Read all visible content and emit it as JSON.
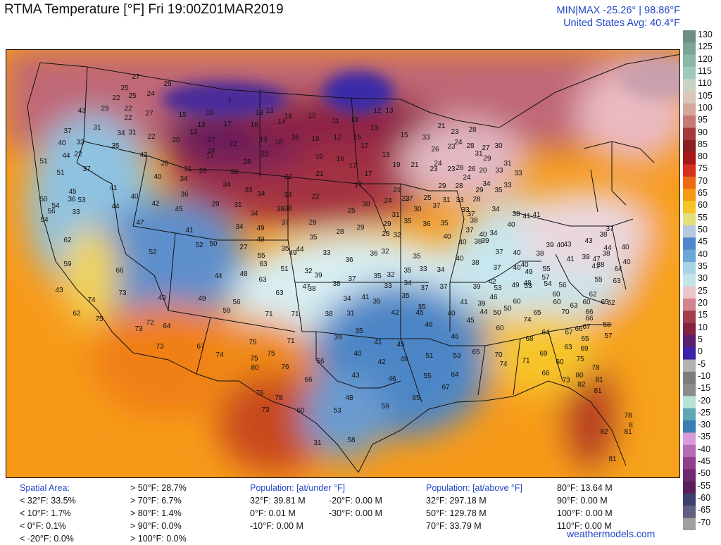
{
  "title": "RTMA Temperature [°F]  Fri 19:00Z01MAR2019",
  "minmax_line": "MIN|MAX -25.26°  |  98.86°F",
  "avg_line": "United States Avg: 40.4°F",
  "credit": "weathermodels.com",
  "legend": {
    "ticks": [
      "130",
      "125",
      "120",
      "115",
      "110",
      "105",
      "100",
      "95",
      "90",
      "85",
      "80",
      "75",
      "70",
      "65",
      "60",
      "55",
      "50",
      "45",
      "40",
      "35",
      "30",
      "25",
      "20",
      "15",
      "10",
      "5",
      "0",
      "-5",
      "-10",
      "-15",
      "-20",
      "-25",
      "-30",
      "-35",
      "-40",
      "-45",
      "-50",
      "-55",
      "-60",
      "-65",
      "-70"
    ],
    "colors": [
      "#6f8f85",
      "#7aa495",
      "#8ab9a8",
      "#9ecbb9",
      "#c9d2c5",
      "#d9c7b7",
      "#d6a59c",
      "#c57a73",
      "#a63a3a",
      "#8c1f1f",
      "#a81818",
      "#d6301f",
      "#ee6a12",
      "#f69a12",
      "#f7c426",
      "#e3e07a",
      "#b7c9de",
      "#4f88c9",
      "#6aa8d8",
      "#a9d3e6",
      "#c2e5ec",
      "#eac5cc",
      "#d2848e",
      "#a43c4e",
      "#822241",
      "#5a1f6d",
      "#3b22a8",
      "#b2b2b2",
      "#7d7d7d",
      "#8c8c8c",
      "#b7e2d8",
      "#5ea7b3",
      "#3c7db3",
      "#d99cd9",
      "#b46ab4",
      "#8e3f8e",
      "#6f2a6f",
      "#5a1f5a",
      "#3f3f70",
      "#606080",
      "#a0a0a0"
    ]
  },
  "stats": {
    "spatial": {
      "header": "Spatial Area:",
      "rows": [
        "< 32°F: 33.5%",
        "< 10°F: 1.7%",
        "< 0°F: 0.1%",
        "< -20°F: 0.0%"
      ]
    },
    "spatial_above": [
      "> 50°F: 28.7%",
      "> 70°F: 6.7%",
      "> 80°F: 1.4%",
      "> 90°F: 0.0%",
      "> 100°F: 0.0%"
    ],
    "pop_under": {
      "header": "Population: [at/under °F]",
      "col1": [
        "32°F: 39.81 M",
        "0°F: 0.01 M",
        "-10°F: 0.00 M"
      ],
      "col2": [
        "-20°F: 0.00 M",
        "-30°F: 0.00 M"
      ]
    },
    "pop_above": {
      "header": "Population: [at/above °F]",
      "col1": [
        "32°F: 297.18 M",
        "50°F: 129.78 M",
        "70°F: 33.79 M"
      ],
      "col2": [
        "80°F: 13.64 M",
        "90°F: 0.00 M",
        "100°F: 0.00 M",
        "110°F: 0.00 M"
      ]
    }
  },
  "map_labels": [
    [
      "27",
      192,
      107
    ],
    [
      "29",
      237,
      117
    ],
    [
      "25",
      176,
      123
    ],
    [
      "24",
      213,
      131
    ],
    [
      "22",
      164,
      137
    ],
    [
      "25",
      187,
      134
    ],
    [
      "29",
      148,
      152
    ],
    [
      "22",
      181,
      152
    ],
    [
      "22",
      181,
      165
    ],
    [
      "27",
      211,
      159
    ],
    [
      "15",
      258,
      161
    ],
    [
      "10",
      297,
      158
    ],
    [
      "7",
      325,
      142
    ],
    [
      "13",
      367,
      158
    ],
    [
      "13",
      382,
      155
    ],
    [
      "14",
      408,
      163
    ],
    [
      "12",
      442,
      162
    ],
    [
      "11",
      476,
      170
    ],
    [
      "13",
      502,
      168
    ],
    [
      "12",
      535,
      155
    ],
    [
      "13",
      552,
      155
    ],
    [
      "43",
      115,
      155
    ],
    [
      "31",
      137,
      179
    ],
    [
      "37",
      95,
      184
    ],
    [
      "40",
      87,
      201
    ],
    [
      "32",
      113,
      200
    ],
    [
      "44",
      93,
      219
    ],
    [
      "22",
      110,
      217
    ],
    [
      "34",
      171,
      187
    ],
    [
      "31",
      187,
      186
    ],
    [
      "35",
      163,
      205
    ],
    [
      "22",
      214,
      192
    ],
    [
      "12",
      274,
      185
    ],
    [
      "13",
      285,
      175
    ],
    [
      "17",
      322,
      174
    ],
    [
      "18",
      360,
      175
    ],
    [
      "14",
      399,
      171
    ],
    [
      "16",
      418,
      193
    ],
    [
      "16",
      447,
      195
    ],
    [
      "12",
      478,
      193
    ],
    [
      "15",
      507,
      193
    ],
    [
      "13",
      531,
      180
    ],
    [
      "15",
      573,
      190
    ],
    [
      "33",
      604,
      193
    ],
    [
      "21",
      626,
      177
    ],
    [
      "23",
      645,
      185
    ],
    [
      "28",
      670,
      182
    ],
    [
      "19",
      373,
      196
    ],
    [
      "18",
      395,
      200
    ],
    [
      "22",
      330,
      202
    ],
    [
      "20",
      249,
      197
    ],
    [
      "42",
      203,
      218
    ],
    [
      "26",
      233,
      230
    ],
    [
      "27",
      299,
      197
    ],
    [
      "17",
      297,
      220
    ],
    [
      "24",
      299,
      212
    ],
    [
      "28",
      350,
      228
    ],
    [
      "23",
      375,
      217
    ],
    [
      "19",
      452,
      221
    ],
    [
      "16",
      482,
      224
    ],
    [
      "17",
      517,
      205
    ],
    [
      "13",
      547,
      218
    ],
    [
      "19",
      562,
      232
    ],
    [
      "26",
      617,
      210
    ],
    [
      "23",
      640,
      206
    ],
    [
      "24",
      650,
      200
    ],
    [
      "28",
      667,
      205
    ],
    [
      "27",
      689,
      208
    ],
    [
      "30",
      707,
      205
    ],
    [
      "31",
      679,
      216
    ],
    [
      "29",
      691,
      223
    ],
    [
      "31",
      720,
      230
    ],
    [
      "33",
      708,
      240
    ],
    [
      "51",
      61,
      227
    ],
    [
      "37",
      122,
      238
    ],
    [
      "40",
      223,
      249
    ],
    [
      "31",
      266,
      238
    ],
    [
      "34",
      260,
      252
    ],
    [
      "26",
      287,
      241
    ],
    [
      "33",
      332,
      242
    ],
    [
      "22",
      408,
      249
    ],
    [
      "21",
      453,
      245
    ],
    [
      "17",
      500,
      234
    ],
    [
      "17",
      522,
      245
    ],
    [
      "21",
      588,
      232
    ],
    [
      "23",
      615,
      238
    ],
    [
      "24",
      621,
      230
    ],
    [
      "23",
      640,
      238
    ],
    [
      "26",
      652,
      236
    ],
    [
      "26",
      669,
      238
    ],
    [
      "20",
      685,
      240
    ],
    [
      "24",
      662,
      250
    ],
    [
      "33",
      735,
      244
    ],
    [
      "51",
      85,
      243
    ],
    [
      "41",
      160,
      265
    ],
    [
      "45",
      102,
      270
    ],
    [
      "40",
      190,
      277
    ],
    [
      "42",
      220,
      287
    ],
    [
      "36",
      261,
      274
    ],
    [
      "34",
      321,
      260
    ],
    [
      "33",
      352,
      268
    ],
    [
      "34",
      370,
      273
    ],
    [
      "24",
      408,
      275
    ],
    [
      "22",
      447,
      277
    ],
    [
      "17",
      508,
      261
    ],
    [
      "21",
      563,
      268
    ],
    [
      "23",
      575,
      280
    ],
    [
      "24",
      550,
      283
    ],
    [
      "27",
      580,
      280
    ],
    [
      "25",
      606,
      279
    ],
    [
      "31",
      633,
      282
    ],
    [
      "33",
      652,
      282
    ],
    [
      "29",
      627,
      262
    ],
    [
      "28",
      651,
      262
    ],
    [
      "29",
      680,
      268
    ],
    [
      "28",
      676,
      281
    ],
    [
      "35",
      707,
      268
    ],
    [
      "33",
      720,
      261
    ],
    [
      "34",
      690,
      259
    ],
    [
      "50",
      61,
      281
    ],
    [
      "36",
      101,
      281
    ],
    [
      "53",
      115,
      282
    ],
    [
      "44",
      163,
      291
    ],
    [
      "54",
      78,
      290
    ],
    [
      "56",
      72,
      298
    ],
    [
      "54",
      62,
      310
    ],
    [
      "33",
      107,
      299
    ],
    [
      "45",
      253,
      295
    ],
    [
      "29",
      305,
      288
    ],
    [
      "31",
      337,
      289
    ],
    [
      "34",
      360,
      301
    ],
    [
      "39",
      397,
      295
    ],
    [
      "38",
      408,
      294
    ],
    [
      "29",
      443,
      314
    ],
    [
      "25",
      498,
      297
    ],
    [
      "30",
      519,
      288
    ],
    [
      "31",
      561,
      303
    ],
    [
      "30",
      592,
      295
    ],
    [
      "37",
      619,
      290
    ],
    [
      "33",
      660,
      296
    ],
    [
      "34",
      703,
      295
    ],
    [
      "38",
      732,
      302
    ],
    [
      "41",
      747,
      305
    ],
    [
      "41",
      761,
      303
    ],
    [
      "47",
      198,
      314
    ],
    [
      "37",
      404,
      314
    ],
    [
      "28",
      482,
      327
    ],
    [
      "29",
      511,
      321
    ],
    [
      "29",
      549,
      316
    ],
    [
      "35",
      578,
      312
    ],
    [
      "36",
      605,
      316
    ],
    [
      "35",
      630,
      315
    ],
    [
      "37",
      668,
      302
    ],
    [
      "38",
      672,
      311
    ],
    [
      "40",
      725,
      317
    ],
    [
      "37",
      666,
      325
    ],
    [
      "34",
      700,
      329
    ],
    [
      "40",
      685,
      331
    ],
    [
      "41",
      268,
      325
    ],
    [
      "52",
      282,
      346
    ],
    [
      "50",
      302,
      344
    ],
    [
      "34",
      339,
      320
    ],
    [
      "49",
      369,
      322
    ],
    [
      "35",
      444,
      335
    ],
    [
      "28",
      547,
      330
    ],
    [
      "32",
      563,
      332
    ],
    [
      "40",
      634,
      334
    ],
    [
      "38",
      678,
      341
    ],
    [
      "40",
      656,
      342
    ],
    [
      "39",
      688,
      340
    ],
    [
      "62",
      95,
      339
    ],
    [
      "35",
      404,
      351
    ],
    [
      "44",
      425,
      352
    ],
    [
      "49",
      415,
      357
    ],
    [
      "33",
      463,
      357
    ],
    [
      "27",
      345,
      349
    ],
    [
      "55",
      370,
      361
    ],
    [
      "49",
      369,
      338
    ],
    [
      "36",
      530,
      358
    ],
    [
      "32",
      546,
      355
    ],
    [
      "35",
      591,
      362
    ],
    [
      "40",
      652,
      365
    ],
    [
      "37",
      708,
      356
    ],
    [
      "40",
      733,
      357
    ],
    [
      "38",
      766,
      358
    ],
    [
      "39",
      780,
      346
    ],
    [
      "40",
      795,
      346
    ],
    [
      "43",
      835,
      340
    ],
    [
      "37",
      865,
      323
    ],
    [
      "38",
      856,
      331
    ],
    [
      "59",
      95,
      373
    ],
    [
      "52",
      216,
      356
    ],
    [
      "66",
      169,
      382
    ],
    [
      "48",
      345,
      387
    ],
    [
      "44",
      309,
      390
    ],
    [
      "63",
      373,
      373
    ],
    [
      "51",
      403,
      380
    ],
    [
      "32",
      437,
      383
    ],
    [
      "39",
      451,
      389
    ],
    [
      "36",
      495,
      367
    ],
    [
      "35",
      535,
      390
    ],
    [
      "37",
      499,
      394
    ],
    [
      "32",
      554,
      388
    ],
    [
      "35",
      578,
      382
    ],
    [
      "33",
      600,
      380
    ],
    [
      "34",
      625,
      381
    ],
    [
      "38",
      674,
      371
    ],
    [
      "37",
      705,
      378
    ],
    [
      "40",
      733,
      378
    ],
    [
      "40",
      744,
      374
    ],
    [
      "49",
      750,
      384
    ],
    [
      "55",
      775,
      380
    ],
    [
      "48",
      748,
      400
    ],
    [
      "41",
      809,
      366
    ],
    [
      "47",
      846,
      366
    ],
    [
      "38",
      860,
      358
    ],
    [
      "44",
      862,
      350
    ],
    [
      "40",
      887,
      349
    ],
    [
      "40",
      889,
      370
    ],
    [
      "38",
      852,
      374
    ],
    [
      "39",
      831,
      363
    ],
    [
      "43",
      805,
      345
    ],
    [
      "63",
      372,
      395
    ],
    [
      "47",
      434,
      405
    ],
    [
      "38",
      477,
      401
    ],
    [
      "33",
      550,
      404
    ],
    [
      "34",
      578,
      400
    ],
    [
      "37",
      602,
      407
    ],
    [
      "37",
      629,
      405
    ],
    [
      "39",
      676,
      405
    ],
    [
      "42",
      698,
      398
    ],
    [
      "49",
      731,
      403
    ],
    [
      "53",
      749,
      404
    ],
    [
      "54",
      777,
      401
    ],
    [
      "57",
      774,
      392
    ],
    [
      "56",
      798,
      403
    ],
    [
      "55",
      849,
      395
    ],
    [
      "63",
      875,
      397
    ],
    [
      "64",
      877,
      380
    ],
    [
      "41",
      845,
      376
    ],
    [
      "43",
      83,
      410
    ],
    [
      "74",
      129,
      424
    ],
    [
      "73",
      173,
      414
    ],
    [
      "63",
      396,
      414
    ],
    [
      "38",
      442,
      408
    ],
    [
      "41",
      518,
      420
    ],
    [
      "35",
      575,
      418
    ],
    [
      "35",
      598,
      434
    ],
    [
      "42",
      560,
      442
    ],
    [
      "45",
      595,
      442
    ],
    [
      "40",
      640,
      443
    ],
    [
      "39",
      683,
      429
    ],
    [
      "41",
      658,
      427
    ],
    [
      "46",
      700,
      420
    ],
    [
      "50",
      705,
      442
    ],
    [
      "53",
      706,
      407
    ],
    [
      "60",
      733,
      426
    ],
    [
      "60",
      789,
      416
    ],
    [
      "62",
      841,
      416
    ],
    [
      "63",
      814,
      432
    ],
    [
      "62",
      867,
      428
    ],
    [
      "65",
      858,
      427
    ],
    [
      "62",
      108,
      443
    ],
    [
      "75",
      140,
      451
    ],
    [
      "73",
      196,
      465
    ],
    [
      "72",
      212,
      456
    ],
    [
      "64",
      236,
      461
    ],
    [
      "49",
      229,
      421
    ],
    [
      "49",
      286,
      422
    ],
    [
      "59",
      321,
      439
    ],
    [
      "56",
      335,
      427
    ],
    [
      "71",
      381,
      444
    ],
    [
      "71",
      418,
      444
    ],
    [
      "38",
      466,
      444
    ],
    [
      "31",
      497,
      443
    ],
    [
      "34",
      492,
      422
    ],
    [
      "35",
      534,
      426
    ],
    [
      "46",
      608,
      459
    ],
    [
      "45",
      667,
      453
    ],
    [
      "44",
      686,
      441
    ],
    [
      "50",
      720,
      436
    ],
    [
      "65",
      762,
      442
    ],
    [
      "74",
      748,
      452
    ],
    [
      "70",
      802,
      441
    ],
    [
      "60",
      790,
      427
    ],
    [
      "60",
      832,
      427
    ],
    [
      "66",
      836,
      441
    ],
    [
      "66",
      836,
      450
    ],
    [
      "58",
      861,
      459
    ],
    [
      "73",
      226,
      490
    ],
    [
      "67",
      284,
      490
    ],
    [
      "75",
      358,
      484
    ],
    [
      "71",
      412,
      482
    ],
    [
      "39",
      479,
      477
    ],
    [
      "35",
      509,
      468
    ],
    [
      "41",
      536,
      484
    ],
    [
      "45",
      568,
      487
    ],
    [
      "46",
      645,
      476
    ],
    [
      "60",
      709,
      464
    ],
    [
      "68",
      751,
      479
    ],
    [
      "64",
      774,
      470
    ],
    [
      "67",
      807,
      470
    ],
    [
      "66",
      821,
      465
    ],
    [
      "65",
      830,
      479
    ],
    [
      "67",
      832,
      462
    ],
    [
      "69",
      829,
      493
    ],
    [
      "57",
      863,
      475
    ],
    [
      "74",
      311,
      502
    ],
    [
      "75",
      384,
      500
    ],
    [
      "75",
      360,
      507
    ],
    [
      "80",
      361,
      520
    ],
    [
      "76",
      404,
      519
    ],
    [
      "56",
      454,
      511
    ],
    [
      "40",
      507,
      500
    ],
    [
      "42",
      541,
      512
    ],
    [
      "49",
      573,
      508
    ],
    [
      "51",
      609,
      503
    ],
    [
      "53",
      648,
      503
    ],
    [
      "65",
      675,
      498
    ],
    [
      "70",
      707,
      502
    ],
    [
      "74",
      714,
      515
    ],
    [
      "71",
      746,
      510
    ],
    [
      "69",
      771,
      500
    ],
    [
      "63",
      806,
      491
    ],
    [
      "60",
      794,
      512
    ],
    [
      "75",
      823,
      508
    ],
    [
      "78",
      845,
      520
    ],
    [
      "66",
      437,
      537
    ],
    [
      "43",
      504,
      531
    ],
    [
      "46",
      556,
      536
    ],
    [
      "55",
      606,
      532
    ],
    [
      "64",
      645,
      530
    ],
    [
      "66",
      774,
      528
    ],
    [
      "73",
      803,
      538
    ],
    [
      "80",
      822,
      531
    ],
    [
      "82",
      825,
      544
    ],
    [
      "81",
      850,
      537
    ],
    [
      "81",
      848,
      553
    ],
    [
      "76",
      368,
      556
    ],
    [
      "78",
      395,
      563
    ],
    [
      "48",
      495,
      563
    ],
    [
      "67",
      632,
      548
    ],
    [
      "65",
      590,
      563
    ],
    [
      "60",
      426,
      581
    ],
    [
      "73",
      376,
      580
    ],
    [
      "53",
      478,
      581
    ],
    [
      "59",
      546,
      575
    ],
    [
      "78",
      891,
      588
    ],
    [
      "82",
      857,
      611
    ],
    [
      "81",
      891,
      611
    ],
    [
      "58",
      498,
      623
    ],
    [
      "31",
      450,
      627
    ],
    [
      "81",
      869,
      650
    ],
    [
      "8",
      895,
      602
    ]
  ]
}
